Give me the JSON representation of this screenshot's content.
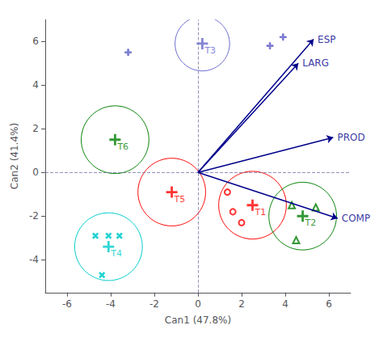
{
  "chart_data": {
    "type": "scatter",
    "xlabel": "Can1 (47.8%)",
    "ylabel": "Can2 (41.4%)",
    "xlim": [
      -7,
      7
    ],
    "ylim": [
      -5.5,
      7
    ],
    "xticks": [
      -6,
      -4,
      -2,
      0,
      2,
      4,
      6
    ],
    "yticks": [
      -4,
      -2,
      0,
      2,
      4,
      6
    ],
    "grid": false,
    "series": [
      {
        "name": "T1",
        "color": "#FF0000",
        "marker": "circle",
        "center": [
          2.5,
          -1.5
        ],
        "radius": 1.55,
        "points": [
          [
            1.35,
            -0.9
          ],
          [
            1.6,
            -1.8
          ],
          [
            2.0,
            -2.3
          ]
        ]
      },
      {
        "name": "T2",
        "color": "#008000",
        "marker": "triangle",
        "center": [
          4.8,
          -2.0
        ],
        "radius": 1.55,
        "points": [
          [
            4.3,
            -1.5
          ],
          [
            5.4,
            -1.6
          ],
          [
            4.5,
            -3.1
          ]
        ]
      },
      {
        "name": "T3",
        "color": "#6666CC",
        "marker": "plus",
        "center": [
          0.2,
          5.9
        ],
        "radius": 1.25,
        "points": [
          [
            -3.2,
            5.5
          ],
          [
            3.3,
            5.8
          ],
          [
            3.9,
            6.2
          ]
        ]
      },
      {
        "name": "T4",
        "color": "#00CCCC",
        "marker": "x",
        "center": [
          -4.1,
          -3.4
        ],
        "radius": 1.55,
        "points": [
          [
            -4.7,
            -2.9
          ],
          [
            -4.1,
            -2.9
          ],
          [
            -3.6,
            -2.9
          ],
          [
            -4.4,
            -4.7
          ]
        ]
      },
      {
        "name": "T5",
        "color": "#FF0000",
        "marker": "circle",
        "center": [
          -1.2,
          -0.9
        ],
        "radius": 1.55,
        "points": []
      },
      {
        "name": "T6",
        "color": "#008000",
        "marker": "triangle",
        "center": [
          -3.8,
          1.5
        ],
        "radius": 1.55,
        "points": []
      }
    ],
    "arrows": [
      {
        "label": "ESP",
        "x": 5.3,
        "y": 6.1
      },
      {
        "label": "LARG",
        "x": 4.6,
        "y": 5.0
      },
      {
        "label": "PROD",
        "x": 6.2,
        "y": 1.6
      },
      {
        "label": "COMP",
        "x": 6.4,
        "y": -2.1
      }
    ],
    "arrow_origin": [
      0,
      0
    ],
    "arrow_color": "#00008B",
    "reference_lines": {
      "x": 0,
      "y": 0,
      "color": "#7777AA",
      "line_style": "dashed"
    }
  }
}
